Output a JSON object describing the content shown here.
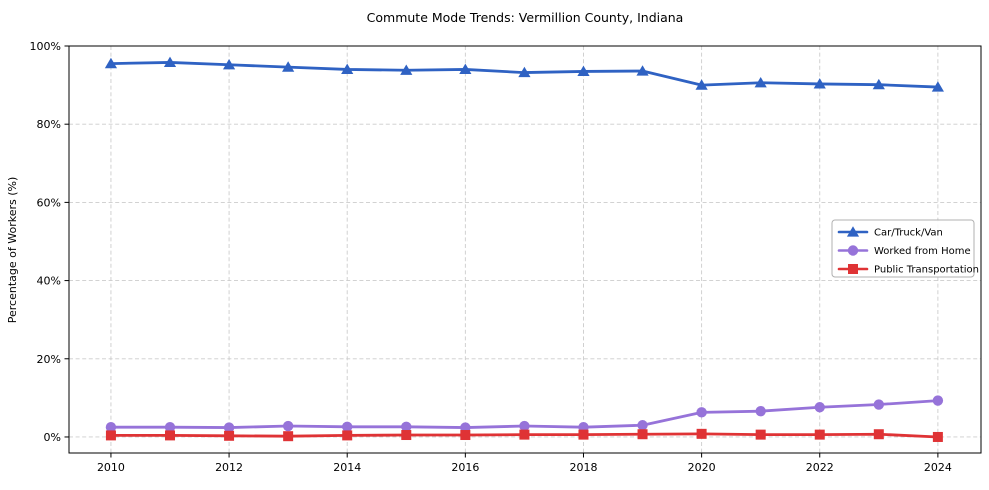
{
  "title": "Commute Mode Trends: Vermillion County, Indiana",
  "chart_data": {
    "type": "line",
    "title": "Commute Mode Trends: Vermillion County, Indiana",
    "xlabel": "",
    "ylabel": "Percentage of Workers (%)",
    "x": [
      2010,
      2011,
      2012,
      2013,
      2014,
      2015,
      2016,
      2017,
      2018,
      2019,
      2020,
      2021,
      2022,
      2023,
      2024
    ],
    "series": [
      {
        "name": "Car/Truck/Van",
        "marker": "triangle",
        "color": "#2f62c3",
        "values": [
          95.5,
          95.8,
          95.2,
          94.6,
          94.0,
          93.8,
          94.0,
          93.2,
          93.5,
          93.6,
          90.0,
          90.6,
          90.3,
          90.1,
          89.5
        ]
      },
      {
        "name": "Worked from Home",
        "marker": "circle",
        "color": "#9673d9",
        "values": [
          2.5,
          2.5,
          2.4,
          2.8,
          2.6,
          2.6,
          2.4,
          2.8,
          2.5,
          3.0,
          6.3,
          6.6,
          7.6,
          8.3,
          9.3
        ]
      },
      {
        "name": "Public Transportation",
        "marker": "square",
        "color": "#df3335",
        "values": [
          0.4,
          0.4,
          0.3,
          0.2,
          0.4,
          0.5,
          0.5,
          0.6,
          0.6,
          0.7,
          0.8,
          0.6,
          0.6,
          0.7,
          0.0
        ]
      }
    ],
    "xtick_values": [
      2010,
      2012,
      2014,
      2016,
      2018,
      2020,
      2022,
      2024
    ],
    "xtick_labels": [
      "2010",
      "2012",
      "2014",
      "2016",
      "2018",
      "2020",
      "2022",
      "2024"
    ],
    "ytick_values": [
      0,
      20,
      40,
      60,
      80,
      100
    ],
    "ytick_labels": [
      "0%",
      "20%",
      "40%",
      "60%",
      "80%",
      "100%"
    ],
    "xlim": [
      2009.29,
      2024.73
    ],
    "ylim": [
      -4.1,
      100
    ],
    "grid": true,
    "grid_style": "dashed",
    "grid_color": "#cccccc",
    "legend_position": "center right",
    "legend_entries": [
      "Car/Truck/Van",
      "Worked from Home",
      "Public Transportation"
    ]
  }
}
